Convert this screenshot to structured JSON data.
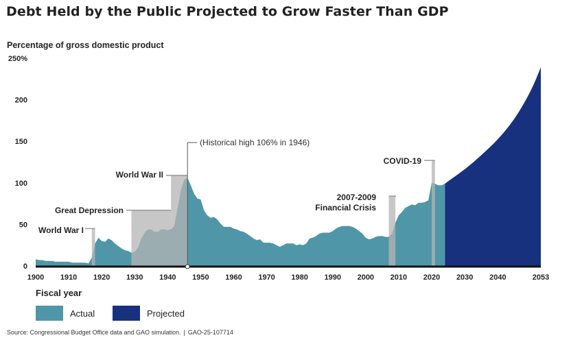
{
  "title": "Debt Held by the Public Projected to Grow Faster Than GDP",
  "source": {
    "text": "Source: Congressional Budget Office data and GAO simulation.",
    "separator": "|",
    "id": "GAO-25-107714"
  },
  "colors": {
    "actual": "#4f97a8",
    "projected": "#17317e",
    "shading": "#b4b4b4",
    "axis": "#111111"
  },
  "chart_data": {
    "type": "area",
    "ylabel": "Percentage of gross domestic product",
    "xlabel": "Fiscal year",
    "ylim": [
      0,
      250
    ],
    "yticks": [
      {
        "value": 0,
        "label": "0"
      },
      {
        "value": 50,
        "label": "50"
      },
      {
        "value": 100,
        "label": "100"
      },
      {
        "value": 150,
        "label": "150"
      },
      {
        "value": 200,
        "label": "200"
      },
      {
        "value": 250,
        "label": "250%"
      }
    ],
    "xticks": [
      {
        "value": 1900,
        "label": "1900"
      },
      {
        "value": 1910,
        "label": "1910"
      },
      {
        "value": 1920,
        "label": "1920"
      },
      {
        "value": 1930,
        "label": "1930"
      },
      {
        "value": 1940,
        "label": "1940"
      },
      {
        "value": 1950,
        "label": "1950"
      },
      {
        "value": 1960,
        "label": "1960"
      },
      {
        "value": 1970,
        "label": "1970"
      },
      {
        "value": 1980,
        "label": "1980"
      },
      {
        "value": 1990,
        "label": "1990"
      },
      {
        "value": 2000,
        "label": "2000"
      },
      {
        "value": 2010,
        "label": "2010"
      },
      {
        "value": 2020,
        "label": "2020"
      },
      {
        "value": 2030,
        "label": "2030"
      },
      {
        "value": 2040,
        "label": "2040"
      },
      {
        "value": 2053,
        "label": "2053"
      }
    ],
    "x_scale": {
      "segments": [
        {
          "from": 1900,
          "to": 2020
        },
        {
          "from": 2020,
          "to": 2053
        }
      ]
    },
    "grid": false,
    "legend_position": "bottom-left",
    "series": [
      {
        "name": "Actual",
        "points": [
          [
            1900,
            8
          ],
          [
            1901,
            7
          ],
          [
            1902,
            7
          ],
          [
            1903,
            6
          ],
          [
            1904,
            6
          ],
          [
            1905,
            6
          ],
          [
            1906,
            5
          ],
          [
            1907,
            5
          ],
          [
            1908,
            5
          ],
          [
            1909,
            5
          ],
          [
            1910,
            5
          ],
          [
            1911,
            4
          ],
          [
            1912,
            4
          ],
          [
            1913,
            4
          ],
          [
            1914,
            4
          ],
          [
            1915,
            4
          ],
          [
            1916,
            3
          ],
          [
            1917,
            10
          ],
          [
            1918,
            27
          ],
          [
            1919,
            34
          ],
          [
            1920,
            30
          ],
          [
            1921,
            29
          ],
          [
            1922,
            33
          ],
          [
            1923,
            31
          ],
          [
            1924,
            27
          ],
          [
            1925,
            24
          ],
          [
            1926,
            21
          ],
          [
            1927,
            19
          ],
          [
            1928,
            18
          ],
          [
            1929,
            16
          ],
          [
            1930,
            17
          ],
          [
            1931,
            22
          ],
          [
            1932,
            33
          ],
          [
            1933,
            40
          ],
          [
            1934,
            44
          ],
          [
            1935,
            44
          ],
          [
            1936,
            41
          ],
          [
            1937,
            41
          ],
          [
            1938,
            44
          ],
          [
            1939,
            44
          ],
          [
            1940,
            43
          ],
          [
            1941,
            44
          ],
          [
            1942,
            48
          ],
          [
            1943,
            70
          ],
          [
            1944,
            91
          ],
          [
            1945,
            104
          ],
          [
            1946,
            106
          ],
          [
            1947,
            97
          ],
          [
            1948,
            87
          ],
          [
            1949,
            81
          ],
          [
            1950,
            80
          ],
          [
            1951,
            67
          ],
          [
            1952,
            61
          ],
          [
            1953,
            58
          ],
          [
            1954,
            59
          ],
          [
            1955,
            56
          ],
          [
            1956,
            51
          ],
          [
            1957,
            47
          ],
          [
            1958,
            47
          ],
          [
            1959,
            47
          ],
          [
            1960,
            45
          ],
          [
            1961,
            44
          ],
          [
            1962,
            42
          ],
          [
            1963,
            41
          ],
          [
            1964,
            39
          ],
          [
            1965,
            36
          ],
          [
            1966,
            33
          ],
          [
            1967,
            31
          ],
          [
            1968,
            32
          ],
          [
            1969,
            28
          ],
          [
            1970,
            28
          ],
          [
            1971,
            28
          ],
          [
            1972,
            27
          ],
          [
            1973,
            25
          ],
          [
            1974,
            23
          ],
          [
            1975,
            25
          ],
          [
            1976,
            27
          ],
          [
            1977,
            27
          ],
          [
            1978,
            27
          ],
          [
            1979,
            25
          ],
          [
            1980,
            26
          ],
          [
            1981,
            25
          ],
          [
            1982,
            27
          ],
          [
            1983,
            33
          ],
          [
            1984,
            34
          ],
          [
            1985,
            36
          ],
          [
            1986,
            39
          ],
          [
            1987,
            40
          ],
          [
            1988,
            40
          ],
          [
            1989,
            40
          ],
          [
            1990,
            42
          ],
          [
            1991,
            45
          ],
          [
            1992,
            47
          ],
          [
            1993,
            48
          ],
          [
            1994,
            48
          ],
          [
            1995,
            48
          ],
          [
            1996,
            47
          ],
          [
            1997,
            45
          ],
          [
            1998,
            42
          ],
          [
            1999,
            39
          ],
          [
            2000,
            34
          ],
          [
            2001,
            32
          ],
          [
            2002,
            33
          ],
          [
            2003,
            35
          ],
          [
            2004,
            36
          ],
          [
            2005,
            36
          ],
          [
            2006,
            35
          ],
          [
            2007,
            35
          ],
          [
            2008,
            39
          ],
          [
            2009,
            52
          ],
          [
            2010,
            61
          ],
          [
            2011,
            65
          ],
          [
            2012,
            70
          ],
          [
            2013,
            72
          ],
          [
            2014,
            74
          ],
          [
            2015,
            73
          ],
          [
            2016,
            76
          ],
          [
            2017,
            76
          ],
          [
            2018,
            77
          ],
          [
            2019,
            79
          ],
          [
            2020,
            100
          ],
          [
            2021,
            99
          ],
          [
            2022,
            97
          ],
          [
            2023,
            97
          ],
          [
            2024,
            99
          ]
        ]
      },
      {
        "name": "Projected",
        "points": [
          [
            2024,
            99
          ],
          [
            2025,
            102
          ],
          [
            2030,
            116
          ],
          [
            2035,
            133
          ],
          [
            2040,
            152
          ],
          [
            2045,
            176
          ],
          [
            2050,
            210
          ],
          [
            2053,
            239
          ]
        ]
      }
    ],
    "shaded_periods": [
      {
        "label": "World War I",
        "from": 1917,
        "to": 1918,
        "top": 45
      },
      {
        "label": "Great Depression",
        "from": 1929,
        "to": 1941,
        "top": 67
      },
      {
        "label": "World War II",
        "from": 1941,
        "to": 1946,
        "top": 109
      },
      {
        "label": "2007-2009 Financial Crisis",
        "label_lines": [
          "2007-2009",
          "Financial Crisis"
        ],
        "from": 2007,
        "to": 2009,
        "top": 84
      },
      {
        "label": "COVID-19",
        "from": 2020,
        "to": 2021,
        "top": 127
      }
    ],
    "annotation": {
      "text": "(Historical high 106% in 1946)",
      "x": 1946,
      "y": 106
    },
    "legend": [
      {
        "label": "Actual",
        "color": "#4f97a8"
      },
      {
        "label": "Projected",
        "color": "#17317e"
      }
    ]
  }
}
